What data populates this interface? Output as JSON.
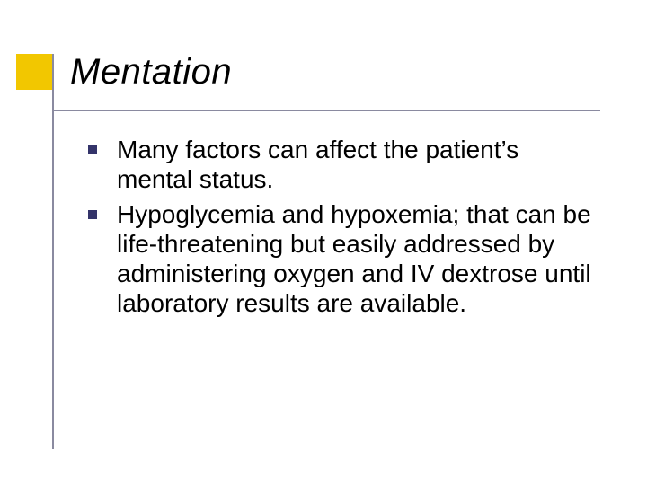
{
  "colors": {
    "accent": "#f2c700",
    "line": "#8a8aa0",
    "bullet": "#34346a",
    "text": "#000000",
    "background": "#ffffff"
  },
  "layout": {
    "underline_width": 610,
    "title_fontsize": 40,
    "body_fontsize": 28
  },
  "title": "Mentation",
  "bullets": [
    "Many factors can affect the patient’s mental status.",
    "Hypoglycemia and hypoxemia; that can be life-threatening but easily addressed by administering oxygen and IV dextrose until laboratory results are available."
  ]
}
